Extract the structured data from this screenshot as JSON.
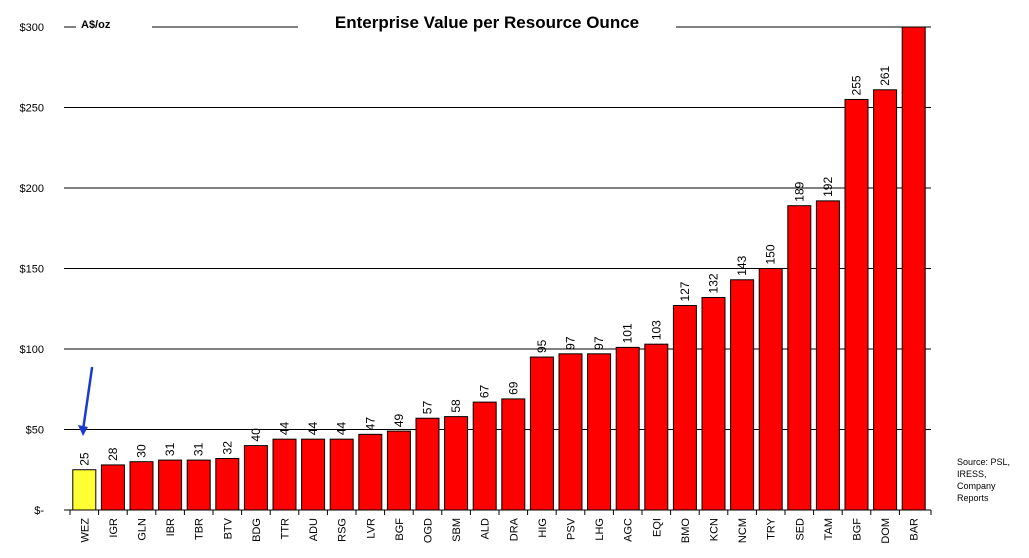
{
  "chart_data": {
    "type": "bar",
    "title": "Enterprise Value per Resource Ounce",
    "ylabel": "A$/oz",
    "xlabel": "",
    "ylim": [
      0,
      300
    ],
    "yticks": [
      {
        "value": 300,
        "label": "$300"
      },
      {
        "value": 250,
        "label": "$250"
      },
      {
        "value": 200,
        "label": "$200"
      },
      {
        "value": 150,
        "label": "$150"
      },
      {
        "value": 100,
        "label": "$100"
      },
      {
        "value": 50,
        "label": "$50"
      },
      {
        "value": 0,
        "label": "$-"
      }
    ],
    "grid": true,
    "categories": [
      "WEZ",
      "IGR",
      "GLN",
      "IBR",
      "TBR",
      "BTV",
      "BDG",
      "TTR",
      "ADU",
      "RSG",
      "LVR",
      "BGF",
      "OGD",
      "SBM",
      "ALD",
      "DRA",
      "HIG",
      "PSV",
      "LHG",
      "AGC",
      "EQI",
      "BMO",
      "KCN",
      "NCM",
      "TRY",
      "SED",
      "TAM",
      "BGF",
      "DOM",
      "BAR"
    ],
    "values": [
      25,
      28,
      30,
      31,
      31,
      32,
      40,
      44,
      44,
      44,
      47,
      49,
      57,
      58,
      67,
      69,
      95,
      97,
      97,
      101,
      103,
      127,
      132,
      143,
      150,
      189,
      192,
      255,
      261,
      300
    ],
    "data_labels": [
      "25",
      "28",
      "30",
      "31",
      "31",
      "32",
      "40",
      "44",
      "44",
      "44",
      "47",
      "49",
      "57",
      "58",
      "67",
      "69",
      "95",
      "97",
      "97",
      "101",
      "103",
      "127",
      "132",
      "143",
      "150",
      "189",
      "192",
      "255",
      "261",
      ""
    ],
    "highlight_index": 0,
    "colors": {
      "bar": "#ff0000",
      "highlight": "#ffff33",
      "outline": "#000000",
      "arrow": "#1a3ccc"
    }
  },
  "source_note": [
    "Source: PSL,",
    "IRESS,",
    "Company",
    "Reports"
  ]
}
